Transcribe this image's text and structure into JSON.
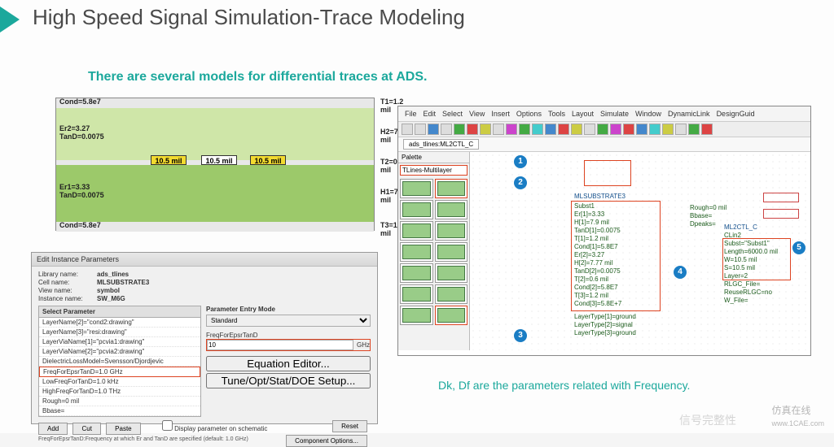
{
  "slide": {
    "title": "High Speed Signal Simulation-Trace Modeling",
    "subtitle": "There are several models for differential traces at ADS.",
    "bottom_text": "Dk, Df are the parameters related with Frequency."
  },
  "cross_section": {
    "left_labels": [
      "Cond=5.8e7",
      "Er2=3.27\nTanD=0.0075",
      "Er1=3.33\nTanD=0.0075",
      "Cond=5.8e7"
    ],
    "right_labels": [
      "T1=1.2 mil",
      "H2=7.77 mil",
      "T2=0.6 mil",
      "H1=7.9 mil",
      "T3=1.2 mil"
    ],
    "traces": [
      "10.5 mil",
      "10.5 mil",
      "10.5 mil"
    ],
    "colors": {
      "sub_top": "#cfe6a8",
      "sub_bot": "#9cc96a",
      "cond": "#e8e8e8",
      "trace": "#f2da2f"
    }
  },
  "dialog": {
    "title": "Edit Instance Parameters",
    "info": {
      "library": "Library name:",
      "library_v": "ads_tlines",
      "cell": "Cell name:",
      "cell_v": "MLSUBSTRATE3",
      "view": "View name:",
      "view_v": "symbol",
      "instance": "Instance name:",
      "instance_v": "SW_M6G"
    },
    "select_param_hdr": "Select Parameter",
    "param_mode_hdr": "Parameter Entry Mode",
    "param_mode_val": "Standard",
    "field_label": "FreqForEpsrTanD",
    "field_value": "10",
    "field_unit": "GHz",
    "params": [
      "LayerName[2]=\"cond2:drawing\"",
      "LayerName[3]=\"resi:drawing\"",
      "LayerViaName[1]=\"pcvia1:drawing\"",
      "LayerViaName[2]=\"pcvia2:drawing\"",
      "DielectricLossModel=Svensson/Djordjevic",
      "FreqForEpsrTanD=1.0 GHz",
      "LowFreqForTanD=1.0 kHz",
      "HighFreqForTanD=1.0 THz",
      "Rough=0 mil",
      "Bbase="
    ],
    "highlight_idx": 5,
    "buttons": {
      "add": "Add",
      "cut": "Cut",
      "paste": "Paste"
    },
    "eq_btn": "Equation Editor...",
    "tune_btn": "Tune/Opt/Stat/DOE Setup...",
    "display_chk": "Display parameter on schematic",
    "comp_btn": "Component Options...",
    "reset_btn": "Reset",
    "note": "FreqForEpsrTanD:Frequency at which Er and TanD are specified (default: 1.0 GHz)"
  },
  "ads": {
    "menu": [
      "File",
      "Edit",
      "Select",
      "View",
      "Insert",
      "Options",
      "Tools",
      "Layout",
      "Simulate",
      "Window",
      "DynamicLink",
      "DesignGuid"
    ],
    "tab": "ads_tlines:ML2CTL_C",
    "palette_title": "Palette",
    "palette_combo": "TLines-Multilayer",
    "substrate": {
      "name": "MLSUBSTRATE3",
      "lines": [
        "Subst1",
        "Er[1]=3.33",
        "H[1]=7.9 mil",
        "TanD[1]=0.0075",
        "T[1]=1.2 mil",
        "Cond[1]=5.8E7",
        "Er[2]=3.27",
        "H[2]=7.77 mil",
        "TanD[2]=0.0075",
        "T[2]=0.6 mil",
        "Cond[2]=5.8E7",
        "T[3]=1.2 mil",
        "Cond[3]=5.8E+7",
        "LayerType[1]=ground",
        "LayerType[2]=signal",
        "LayerType[3]=ground"
      ]
    },
    "rough": [
      "Rough=0 mil",
      "Bbase=",
      "Dpeaks="
    ],
    "ml2ctl": {
      "name": "ML2CTL_C",
      "sub": "CLin2",
      "lines": [
        "Subst=\"Subst1\"",
        "Length=6000.0 mil",
        "W=10.5 mil",
        "S=10.5 mil",
        "Layer=2",
        "RLGC_File=",
        "ReuseRLGC=no",
        "W_File="
      ]
    },
    "callouts": [
      "1",
      "2",
      "3",
      "4",
      "5"
    ]
  },
  "watermark": "仿真在线",
  "watermark_url": "www.1CAE.com",
  "watermark2": "信号完整性"
}
